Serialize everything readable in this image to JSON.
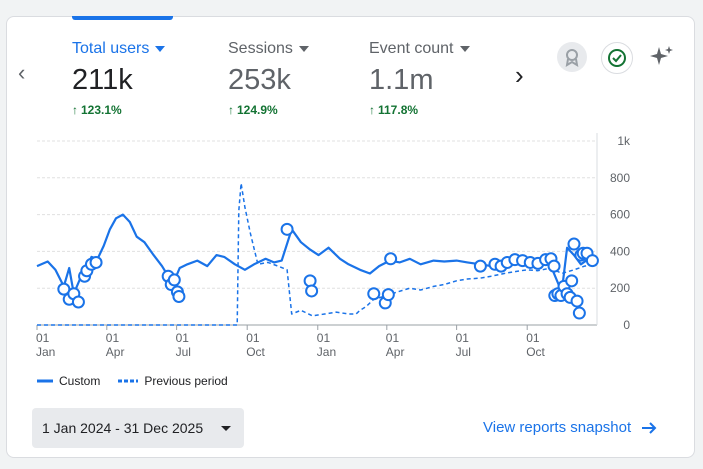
{
  "metrics": [
    {
      "label": "Total users",
      "value": "211k",
      "delta": "123.1%"
    },
    {
      "label": "Sessions",
      "value": "253k",
      "delta": "124.9%"
    },
    {
      "label": "Event count",
      "value": "1.1m",
      "delta": "117.8%"
    }
  ],
  "icons": {
    "prev": "chevron-left-icon",
    "next": "chevron-right-icon",
    "badge": "award-badge-icon",
    "check": "check-circle-icon",
    "sparkle": "sparkle-icon"
  },
  "colors": {
    "accent": "#1a73e8",
    "positive": "#137333"
  },
  "legend": {
    "custom": "Custom",
    "previous": "Previous period"
  },
  "date_range": "1 Jan 2024 - 31 Dec 2025",
  "link_label": "View reports snapshot",
  "chart_data": {
    "type": "line",
    "y_ticks": [
      "0",
      "200",
      "400",
      "600",
      "800",
      "1k"
    ],
    "ylim": [
      0,
      1000
    ],
    "grid": true,
    "x_ticks": [
      {
        "day": "01",
        "month": "Jan"
      },
      {
        "day": "01",
        "month": "Apr"
      },
      {
        "day": "01",
        "month": "Jul"
      },
      {
        "day": "01",
        "month": "Oct"
      },
      {
        "day": "01",
        "month": "Jan"
      },
      {
        "day": "01",
        "month": "Apr"
      },
      {
        "day": "01",
        "month": "Jul"
      },
      {
        "day": "01",
        "month": "Oct"
      }
    ],
    "x_tick_dates": [
      "2024-01-01",
      "2024-04-01",
      "2024-07-01",
      "2024-10-01",
      "2025-01-01",
      "2025-04-01",
      "2025-07-01",
      "2025-10-01"
    ],
    "x_range": [
      "2024-01-01",
      "2025-12-31"
    ],
    "series": [
      {
        "name": "Custom",
        "style": "solid",
        "points": [
          [
            "2024-01-01",
            320
          ],
          [
            "2024-01-15",
            345
          ],
          [
            "2024-01-25",
            300
          ],
          [
            "2024-02-05",
            210
          ],
          [
            "2024-02-12",
            310
          ],
          [
            "2024-02-18",
            170
          ],
          [
            "2024-02-26",
            250
          ],
          [
            "2024-03-04",
            300
          ],
          [
            "2024-03-12",
            370
          ],
          [
            "2024-03-20",
            360
          ],
          [
            "2024-03-28",
            430
          ],
          [
            "2024-04-05",
            520
          ],
          [
            "2024-04-13",
            580
          ],
          [
            "2024-04-22",
            600
          ],
          [
            "2024-05-01",
            560
          ],
          [
            "2024-05-10",
            480
          ],
          [
            "2024-05-20",
            450
          ],
          [
            "2024-06-01",
            380
          ],
          [
            "2024-06-12",
            320
          ],
          [
            "2024-06-20",
            265
          ],
          [
            "2024-06-28",
            240
          ],
          [
            "2024-07-05",
            310
          ],
          [
            "2024-07-15",
            330
          ],
          [
            "2024-07-28",
            350
          ],
          [
            "2024-08-10",
            320
          ],
          [
            "2024-08-22",
            380
          ],
          [
            "2024-09-01",
            370
          ],
          [
            "2024-09-15",
            330
          ],
          [
            "2024-09-28",
            300
          ],
          [
            "2024-10-10",
            330
          ],
          [
            "2024-10-25",
            360
          ],
          [
            "2024-11-05",
            340
          ],
          [
            "2024-11-15",
            350
          ],
          [
            "2024-11-28",
            520
          ],
          [
            "2024-12-10",
            450
          ],
          [
            "2024-12-22",
            410
          ],
          [
            "2025-01-02",
            380
          ],
          [
            "2025-01-15",
            420
          ],
          [
            "2025-01-30",
            360
          ],
          [
            "2025-02-10",
            330
          ],
          [
            "2025-02-25",
            300
          ],
          [
            "2025-03-10",
            280
          ],
          [
            "2025-03-22",
            320
          ],
          [
            "2025-04-05",
            350
          ],
          [
            "2025-04-18",
            340
          ],
          [
            "2025-05-01",
            360
          ],
          [
            "2025-05-15",
            330
          ],
          [
            "2025-06-01",
            350
          ],
          [
            "2025-06-15",
            345
          ],
          [
            "2025-07-01",
            350
          ],
          [
            "2025-07-15",
            340
          ],
          [
            "2025-08-01",
            330
          ],
          [
            "2025-08-15",
            320
          ],
          [
            "2025-09-01",
            325
          ],
          [
            "2025-09-15",
            340
          ],
          [
            "2025-10-01",
            345
          ],
          [
            "2025-10-15",
            340
          ],
          [
            "2025-10-28",
            360
          ],
          [
            "2025-11-08",
            250
          ],
          [
            "2025-11-15",
            180
          ],
          [
            "2025-11-22",
            420
          ],
          [
            "2025-12-01",
            380
          ],
          [
            "2025-12-10",
            330
          ],
          [
            "2025-12-20",
            360
          ],
          [
            "2025-12-31",
            365
          ]
        ]
      },
      {
        "name": "Previous period",
        "style": "dashed",
        "points": [
          [
            "2024-01-01",
            0
          ],
          [
            "2024-03-01",
            0
          ],
          [
            "2024-06-01",
            0
          ],
          [
            "2024-09-01",
            0
          ],
          [
            "2024-09-18",
            0
          ],
          [
            "2024-09-20",
            620
          ],
          [
            "2024-09-23",
            770
          ],
          [
            "2024-09-28",
            640
          ],
          [
            "2024-10-05",
            500
          ],
          [
            "2024-10-15",
            330
          ],
          [
            "2024-10-28",
            340
          ],
          [
            "2024-11-10",
            320
          ],
          [
            "2024-11-22",
            300
          ],
          [
            "2024-11-28",
            60
          ],
          [
            "2024-12-10",
            80
          ],
          [
            "2024-12-25",
            50
          ],
          [
            "2025-01-10",
            60
          ],
          [
            "2025-01-25",
            70
          ],
          [
            "2025-02-10",
            60
          ],
          [
            "2025-02-20",
            60
          ],
          [
            "2025-02-25",
            80
          ],
          [
            "2025-03-05",
            100
          ],
          [
            "2025-03-15",
            140
          ],
          [
            "2025-04-01",
            160
          ],
          [
            "2025-04-15",
            180
          ],
          [
            "2025-05-01",
            200
          ],
          [
            "2025-05-15",
            190
          ],
          [
            "2025-06-01",
            210
          ],
          [
            "2025-06-15",
            220
          ],
          [
            "2025-07-01",
            240
          ],
          [
            "2025-07-15",
            250
          ],
          [
            "2025-08-01",
            255
          ],
          [
            "2025-08-15",
            265
          ],
          [
            "2025-09-01",
            280
          ],
          [
            "2025-09-15",
            290
          ],
          [
            "2025-10-01",
            300
          ],
          [
            "2025-10-15",
            295
          ],
          [
            "2025-11-01",
            310
          ],
          [
            "2025-11-15",
            280
          ],
          [
            "2025-12-01",
            300
          ],
          [
            "2025-12-15",
            320
          ],
          [
            "2025-12-31",
            330
          ]
        ]
      }
    ],
    "markers": [
      [
        "2024-02-05",
        195
      ],
      [
        "2024-02-12",
        140
      ],
      [
        "2024-02-18",
        170
      ],
      [
        "2024-02-24",
        125
      ],
      [
        "2024-03-03",
        265
      ],
      [
        "2024-03-06",
        295
      ],
      [
        "2024-03-12",
        330
      ],
      [
        "2024-03-18",
        340
      ],
      [
        "2024-06-20",
        265
      ],
      [
        "2024-06-24",
        220
      ],
      [
        "2024-06-28",
        245
      ],
      [
        "2024-07-02",
        180
      ],
      [
        "2024-07-04",
        155
      ],
      [
        "2024-11-22",
        520
      ],
      [
        "2024-12-22",
        240
      ],
      [
        "2024-12-24",
        185
      ],
      [
        "2025-03-15",
        170
      ],
      [
        "2025-03-30",
        120
      ],
      [
        "2025-04-03",
        165
      ],
      [
        "2025-04-06",
        360
      ],
      [
        "2025-08-01",
        320
      ],
      [
        "2025-08-20",
        330
      ],
      [
        "2025-08-28",
        320
      ],
      [
        "2025-09-05",
        340
      ],
      [
        "2025-09-15",
        355
      ],
      [
        "2025-09-25",
        350
      ],
      [
        "2025-10-05",
        340
      ],
      [
        "2025-10-15",
        335
      ],
      [
        "2025-10-25",
        355
      ],
      [
        "2025-11-01",
        360
      ],
      [
        "2025-11-05",
        320
      ],
      [
        "2025-11-06",
        160
      ],
      [
        "2025-11-10",
        170
      ],
      [
        "2025-11-14",
        160
      ],
      [
        "2025-11-18",
        210
      ],
      [
        "2025-11-22",
        170
      ],
      [
        "2025-11-26",
        150
      ],
      [
        "2025-11-28",
        240
      ],
      [
        "2025-12-01",
        440
      ],
      [
        "2025-12-05",
        130
      ],
      [
        "2025-12-08",
        65
      ],
      [
        "2025-12-10",
        380
      ],
      [
        "2025-12-13",
        390
      ],
      [
        "2025-12-18",
        390
      ],
      [
        "2025-12-25",
        350
      ]
    ]
  }
}
